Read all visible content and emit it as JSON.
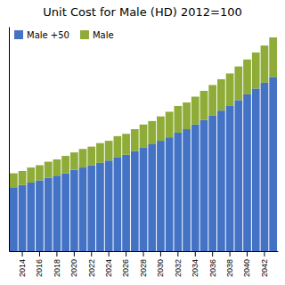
{
  "chart_data": {
    "type": "bar",
    "title": "Unit Cost for Male (HD) 2012=100",
    "categories": [
      null,
      "2014",
      null,
      "2016",
      null,
      "2018",
      null,
      "2020",
      null,
      "2022",
      null,
      "2024",
      null,
      "2026",
      null,
      "2028",
      null,
      "2030",
      null,
      "2032",
      null,
      "2034",
      null,
      "2036",
      null,
      "2038",
      null,
      "2040",
      null,
      "2042",
      null
    ],
    "series": [
      {
        "name": "Male +50",
        "color": "#4472C4",
        "values": [
          55,
          57,
          59,
          61,
          63,
          65,
          67,
          70,
          72,
          74,
          76,
          78,
          81,
          83,
          86,
          89,
          92,
          95,
          98,
          102,
          105,
          109,
          113,
          117,
          121,
          125,
          130,
          135,
          140,
          145,
          150
        ]
      },
      {
        "name": "Male",
        "color": "#8fac38",
        "values": [
          12,
          12,
          13,
          13,
          14,
          14,
          15,
          15,
          16,
          16,
          17,
          17,
          18,
          18,
          19,
          20,
          20,
          21,
          22,
          23,
          23,
          24,
          25,
          26,
          27,
          28,
          29,
          30,
          31,
          32,
          34
        ]
      }
    ],
    "stacked": true,
    "ylim": [
      0,
      193.2
    ],
    "tick_labels": "x",
    "grid": false,
    "legend": "top-left"
  }
}
